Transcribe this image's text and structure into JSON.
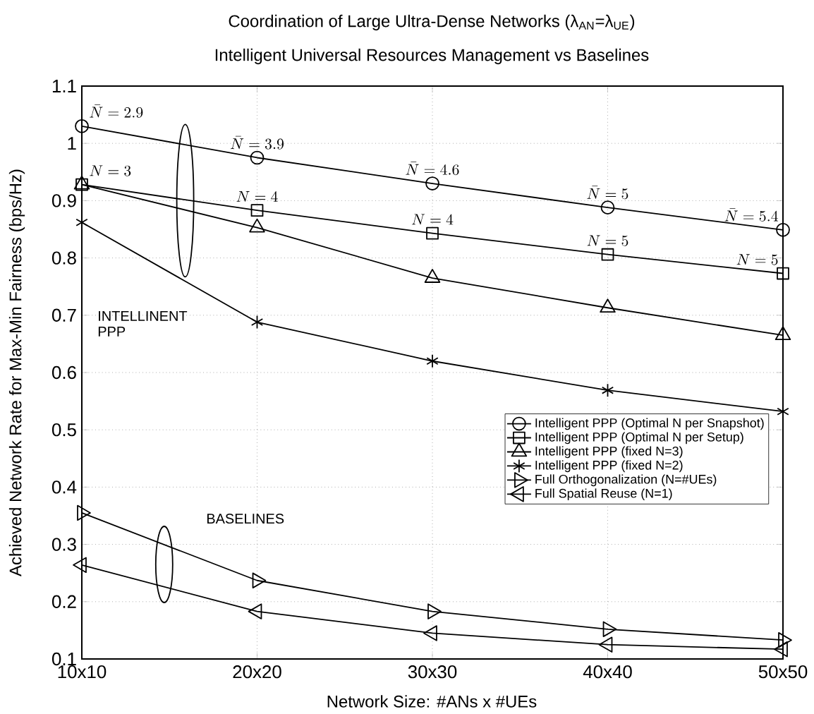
{
  "chart_data": {
    "type": "line",
    "title": "Coordination of Large Ultra-Dense Networks (λ$_{AN}$=λ$_{UE}$)",
    "subtitle": "Intelligent Universal Resources Management vs Baselines",
    "xlabel": "Network Size: #ANs x #UEs",
    "ylabel": "Achieved Network Rate for Max-Min Fairness (bps/Hz)",
    "categories": [
      "10x10",
      "20x20",
      "30x30",
      "40x40",
      "50x50"
    ],
    "series": [
      {
        "name": "Intelligent PPP (Optimal N per Snapshot)",
        "color": "#000000",
        "marker": "circle",
        "values": [
          1.03,
          0.975,
          0.93,
          0.888,
          0.849
        ]
      },
      {
        "name": "Intelligent PPP (Optimal N per Setup)",
        "color": "#000000",
        "marker": "square",
        "values": [
          0.928,
          0.883,
          0.843,
          0.806,
          0.773
        ]
      },
      {
        "name": "Intelligent PPP (fixed N=3)",
        "color": "#000000",
        "marker": "triangle",
        "values": [
          0.928,
          0.853,
          0.765,
          0.713,
          0.665
        ]
      },
      {
        "name": "Intelligent PPP (fixed N=2)",
        "color": "#000000",
        "marker": "cross",
        "values": [
          0.862,
          0.688,
          0.62,
          0.569,
          0.532
        ]
      },
      {
        "name": "Full Orthogonalization (N=#UEs)",
        "color": "#000000",
        "marker": "triangle-right",
        "values": [
          0.355,
          0.237,
          0.183,
          0.152,
          0.133
        ]
      },
      {
        "name": "Full Spatial Reuse (N=1)",
        "color": "#000000",
        "marker": "triangle-left",
        "values": [
          0.264,
          0.183,
          0.145,
          0.125,
          0.117
        ]
      }
    ],
    "ylim": [
      0.1,
      1.1
    ],
    "yticks": [
      0.1,
      0.2,
      0.3,
      0.4,
      0.5,
      0.6,
      0.7,
      0.8,
      0.9,
      1,
      1.1
    ],
    "grid": true,
    "legend": "right",
    "line_style": "solid",
    "annotations": [
      {
        "text": "\\bar{N} = 2.9",
        "x": "10x10",
        "y": 1.03
      },
      {
        "text": "\\bar{N} = 3.9",
        "x": "20x20",
        "y": 0.975
      },
      {
        "text": "\\bar{N} = 4.6",
        "x": "30x30",
        "y": 0.93
      },
      {
        "text": "\\bar{N} = 5",
        "x": "40x40",
        "y": 0.888
      },
      {
        "text": "\\bar{N} = 5.4",
        "x": "50x50",
        "y": 0.849
      },
      {
        "text": "N = 3",
        "x": "10x10",
        "y": 0.928
      },
      {
        "text": "N = 4",
        "x": "20x20",
        "y": 0.883
      },
      {
        "text": "N = 4",
        "x": "30x30",
        "y": 0.843
      },
      {
        "text": "N = 5",
        "x": "40x40",
        "y": 0.806
      },
      {
        "text": "N = 5",
        "x": "50x50",
        "y": 0.773
      },
      "INTELLINENT PPP",
      "BASELINES"
    ]
  }
}
